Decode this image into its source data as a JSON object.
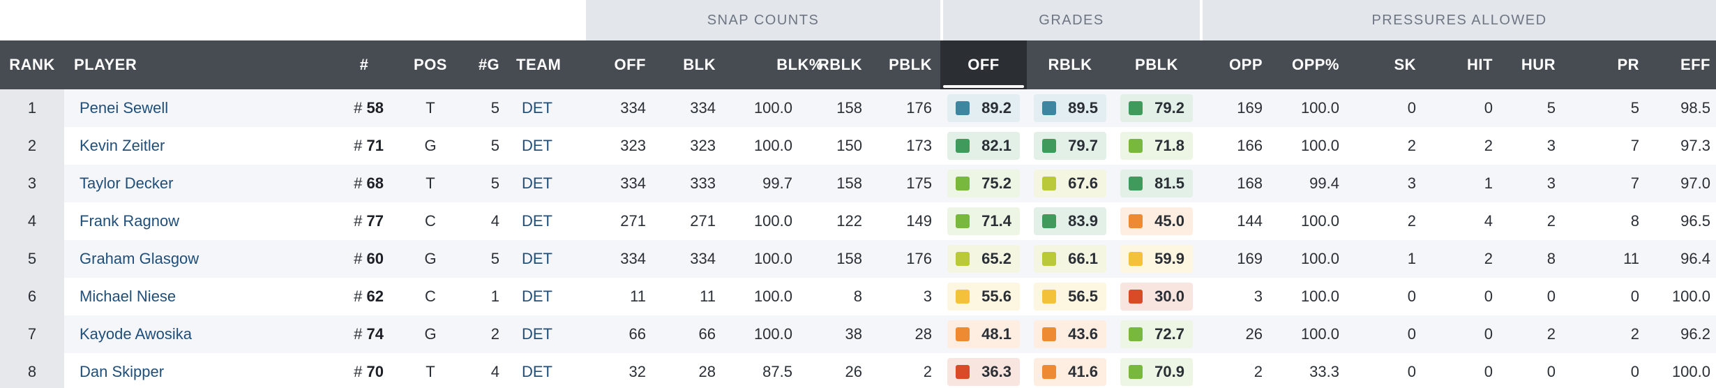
{
  "groups": {
    "snap": "SNAP COUNTS",
    "grades": "GRADES",
    "pressures": "PRESSURES ALLOWED"
  },
  "columns": {
    "rank": "RANK",
    "player": "PLAYER",
    "number": "#",
    "pos": "POS",
    "games": "#G",
    "team": "TEAM",
    "off": "OFF",
    "blk": "BLK",
    "blk_pct": "BLK%",
    "rblk": "RBLK",
    "pblk": "PBLK",
    "grade_off": "OFF",
    "grade_rblk": "RBLK",
    "grade_pblk": "PBLK",
    "opp": "OPP",
    "opp_pct": "OPP%",
    "sk": "SK",
    "hit": "HIT",
    "hur": "HUR",
    "pr": "PR",
    "eff": "EFF"
  },
  "grade_colors": {
    "blue": "#3e86a0",
    "dkgreen": "#3f9a5c",
    "green": "#77b83d",
    "ygreen": "#b9c93a",
    "yellow": "#f3c23a",
    "orange": "#ee8a32",
    "red": "#d94a26"
  },
  "grade_bg": {
    "blue": "#e3eef2",
    "dkgreen": "#e3f0e7",
    "green": "#edf5e5",
    "ygreen": "#f4f6e2",
    "yellow": "#fdf6e1",
    "orange": "#fdeee1",
    "red": "#f9e5df"
  },
  "rows": [
    {
      "rank": "1",
      "player": "Penei Sewell",
      "num_prefix": "#",
      "num": "58",
      "pos": "T",
      "games": "5",
      "team": "DET",
      "off": "334",
      "blk": "334",
      "blk_pct": "100.0",
      "rblk": "158",
      "pblk": "176",
      "g_off": "89.2",
      "g_off_c": "blue",
      "g_rblk": "89.5",
      "g_rblk_c": "blue",
      "g_pblk": "79.2",
      "g_pblk_c": "dkgreen",
      "opp": "169",
      "opp_pct": "100.0",
      "sk": "0",
      "hit": "0",
      "hur": "5",
      "pr": "5",
      "eff": "98.5"
    },
    {
      "rank": "2",
      "player": "Kevin Zeitler",
      "num_prefix": "#",
      "num": "71",
      "pos": "G",
      "games": "5",
      "team": "DET",
      "off": "323",
      "blk": "323",
      "blk_pct": "100.0",
      "rblk": "150",
      "pblk": "173",
      "g_off": "82.1",
      "g_off_c": "dkgreen",
      "g_rblk": "79.7",
      "g_rblk_c": "dkgreen",
      "g_pblk": "71.8",
      "g_pblk_c": "green",
      "opp": "166",
      "opp_pct": "100.0",
      "sk": "2",
      "hit": "2",
      "hur": "3",
      "pr": "7",
      "eff": "97.3"
    },
    {
      "rank": "3",
      "player": "Taylor Decker",
      "num_prefix": "#",
      "num": "68",
      "pos": "T",
      "games": "5",
      "team": "DET",
      "off": "334",
      "blk": "333",
      "blk_pct": "99.7",
      "rblk": "158",
      "pblk": "175",
      "g_off": "75.2",
      "g_off_c": "green",
      "g_rblk": "67.6",
      "g_rblk_c": "ygreen",
      "g_pblk": "81.5",
      "g_pblk_c": "dkgreen",
      "opp": "168",
      "opp_pct": "99.4",
      "sk": "3",
      "hit": "1",
      "hur": "3",
      "pr": "7",
      "eff": "97.0"
    },
    {
      "rank": "4",
      "player": "Frank Ragnow",
      "num_prefix": "#",
      "num": "77",
      "pos": "C",
      "games": "4",
      "team": "DET",
      "off": "271",
      "blk": "271",
      "blk_pct": "100.0",
      "rblk": "122",
      "pblk": "149",
      "g_off": "71.4",
      "g_off_c": "green",
      "g_rblk": "83.9",
      "g_rblk_c": "dkgreen",
      "g_pblk": "45.0",
      "g_pblk_c": "orange",
      "opp": "144",
      "opp_pct": "100.0",
      "sk": "2",
      "hit": "4",
      "hur": "2",
      "pr": "8",
      "eff": "96.5"
    },
    {
      "rank": "5",
      "player": "Graham Glasgow",
      "num_prefix": "#",
      "num": "60",
      "pos": "G",
      "games": "5",
      "team": "DET",
      "off": "334",
      "blk": "334",
      "blk_pct": "100.0",
      "rblk": "158",
      "pblk": "176",
      "g_off": "65.2",
      "g_off_c": "ygreen",
      "g_rblk": "66.1",
      "g_rblk_c": "ygreen",
      "g_pblk": "59.9",
      "g_pblk_c": "yellow",
      "opp": "169",
      "opp_pct": "100.0",
      "sk": "1",
      "hit": "2",
      "hur": "8",
      "pr": "11",
      "eff": "96.4"
    },
    {
      "rank": "6",
      "player": "Michael Niese",
      "num_prefix": "#",
      "num": "62",
      "pos": "C",
      "games": "1",
      "team": "DET",
      "off": "11",
      "blk": "11",
      "blk_pct": "100.0",
      "rblk": "8",
      "pblk": "3",
      "g_off": "55.6",
      "g_off_c": "yellow",
      "g_rblk": "56.5",
      "g_rblk_c": "yellow",
      "g_pblk": "30.0",
      "g_pblk_c": "red",
      "opp": "3",
      "opp_pct": "100.0",
      "sk": "0",
      "hit": "0",
      "hur": "0",
      "pr": "0",
      "eff": "100.0"
    },
    {
      "rank": "7",
      "player": "Kayode Awosika",
      "num_prefix": "#",
      "num": "74",
      "pos": "G",
      "games": "2",
      "team": "DET",
      "off": "66",
      "blk": "66",
      "blk_pct": "100.0",
      "rblk": "38",
      "pblk": "28",
      "g_off": "48.1",
      "g_off_c": "orange",
      "g_rblk": "43.6",
      "g_rblk_c": "orange",
      "g_pblk": "72.7",
      "g_pblk_c": "green",
      "opp": "26",
      "opp_pct": "100.0",
      "sk": "0",
      "hit": "0",
      "hur": "2",
      "pr": "2",
      "eff": "96.2"
    },
    {
      "rank": "8",
      "player": "Dan Skipper",
      "num_prefix": "#",
      "num": "70",
      "pos": "T",
      "games": "4",
      "team": "DET",
      "off": "32",
      "blk": "28",
      "blk_pct": "87.5",
      "rblk": "26",
      "pblk": "2",
      "g_off": "36.3",
      "g_off_c": "red",
      "g_rblk": "41.6",
      "g_rblk_c": "orange",
      "g_pblk": "70.9",
      "g_pblk_c": "green",
      "opp": "2",
      "opp_pct": "33.3",
      "sk": "0",
      "hit": "0",
      "hur": "0",
      "pr": "0",
      "eff": "100.0"
    }
  ]
}
